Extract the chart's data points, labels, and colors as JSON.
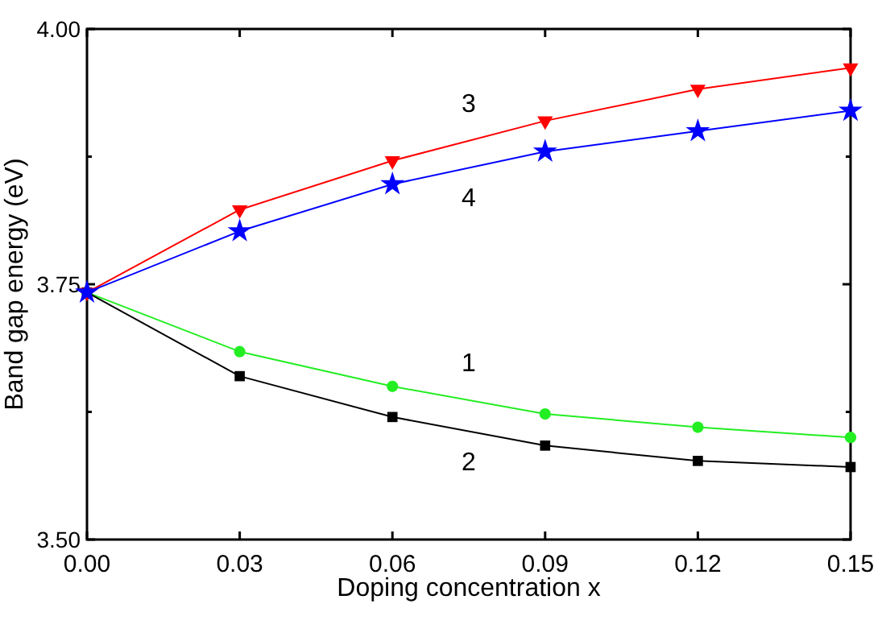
{
  "chart_data": {
    "type": "line",
    "xlabel": "Doping concentration x",
    "ylabel": "Band gap energy (eV)",
    "x": [
      0,
      0.03,
      0.06,
      0.09,
      0.12,
      0.15
    ],
    "series": [
      {
        "name": "1",
        "color": "#22ee22",
        "marker": "circle",
        "values": [
          3.742,
          3.684,
          3.65,
          3.623,
          3.61,
          3.6
        ]
      },
      {
        "name": "2",
        "color": "#000000",
        "marker": "square",
        "values": [
          3.742,
          3.66,
          3.62,
          3.592,
          3.577,
          3.571
        ]
      },
      {
        "name": "3",
        "color": "#ff0000",
        "marker": "triangle",
        "values": [
          3.742,
          3.823,
          3.871,
          3.91,
          3.941,
          3.962
        ]
      },
      {
        "name": "4",
        "color": "#0000ff",
        "marker": "star",
        "values": [
          3.742,
          3.802,
          3.848,
          3.88,
          3.9,
          3.92
        ]
      }
    ],
    "xlim": [
      0,
      0.15
    ],
    "xticks": [
      {
        "value": 0,
        "label": "0.00"
      },
      {
        "value": 0.03,
        "label": "0.03"
      },
      {
        "value": 0.06,
        "label": "0.06"
      },
      {
        "value": 0.09,
        "label": "0.09"
      },
      {
        "value": 0.12,
        "label": "0.12"
      },
      {
        "value": 0.15,
        "label": "0.15"
      }
    ],
    "ylim": [
      3.5,
      4.0
    ],
    "yticks": [
      {
        "value": 3.5,
        "label": "3.50"
      },
      {
        "value": 3.625,
        "label": null
      },
      {
        "value": 3.75,
        "label": "3.75"
      },
      {
        "value": 3.875,
        "label": null
      },
      {
        "value": 4.0,
        "label": "4.00"
      }
    ],
    "grid": false,
    "line_style": "solid"
  }
}
